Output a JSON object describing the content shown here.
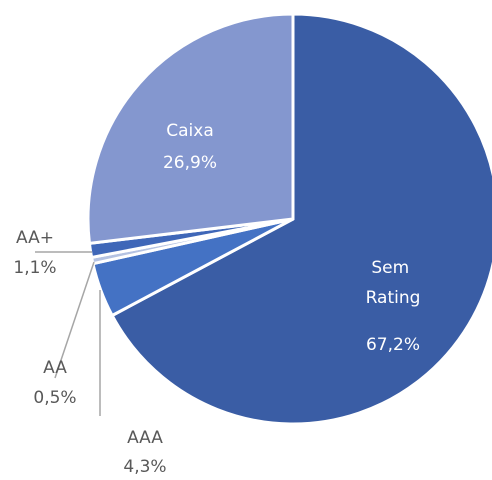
{
  "chart_data": {
    "type": "pie",
    "categories": [
      "Sem Rating",
      "AAA",
      "AA",
      "AA+",
      "Caixa"
    ],
    "values": [
      67.2,
      4.3,
      0.5,
      1.1,
      26.9
    ],
    "value_labels": [
      "67,2%",
      "4,3%",
      "0,5%",
      "1,1%",
      "26,9%"
    ],
    "colors": [
      "#3a5da5",
      "#4472c4",
      "#b4c2e2",
      "#3f67b8",
      "#8497cf"
    ]
  }
}
